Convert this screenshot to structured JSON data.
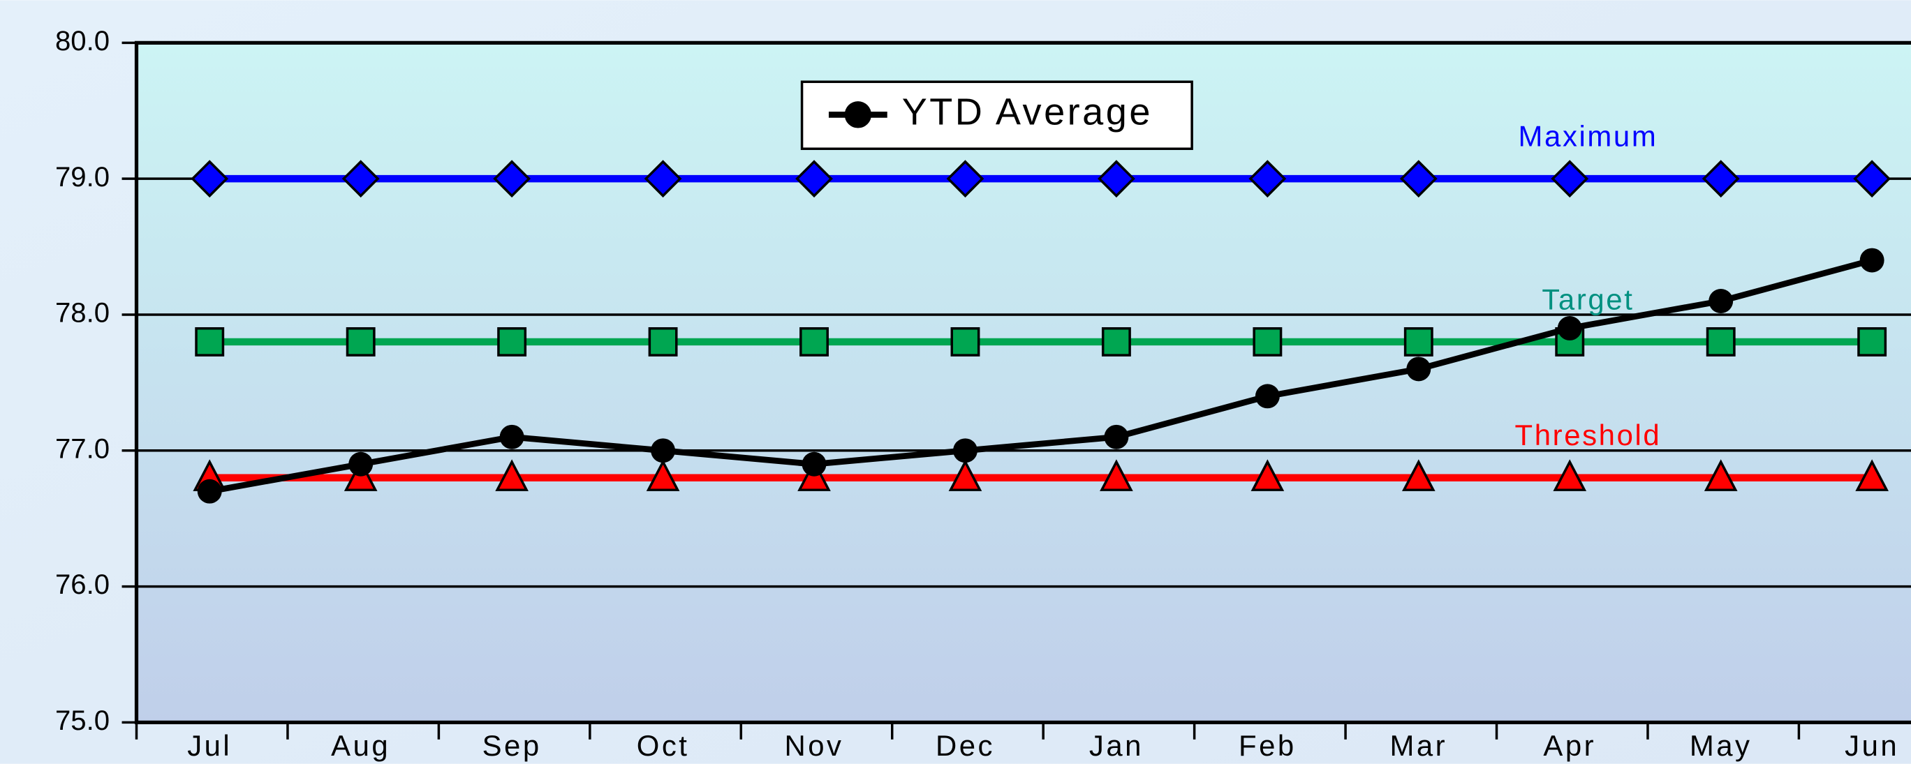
{
  "chart_data": {
    "type": "line",
    "categories": [
      "Jul",
      "Aug",
      "Sep",
      "Oct",
      "Nov",
      "Dec",
      "Jan",
      "Feb",
      "Mar",
      "Apr",
      "May",
      "Jun"
    ],
    "series": [
      {
        "name": "Maximum",
        "color": "#0000ff",
        "marker": "diamond",
        "legend": false,
        "label": true,
        "values": [
          79.0,
          79.0,
          79.0,
          79.0,
          79.0,
          79.0,
          79.0,
          79.0,
          79.0,
          79.0,
          79.0,
          79.0
        ]
      },
      {
        "name": "Target",
        "color": "#00a651",
        "label_color": "#009080",
        "marker": "square",
        "legend": false,
        "label": true,
        "values": [
          77.8,
          77.8,
          77.8,
          77.8,
          77.8,
          77.8,
          77.8,
          77.8,
          77.8,
          77.8,
          77.8,
          77.8
        ]
      },
      {
        "name": "Threshold",
        "color": "#ff0000",
        "marker": "triangle",
        "legend": false,
        "label": true,
        "values": [
          76.8,
          76.8,
          76.8,
          76.8,
          76.8,
          76.8,
          76.8,
          76.8,
          76.8,
          76.8,
          76.8,
          76.8
        ]
      },
      {
        "name": "YTD Average",
        "color": "#000000",
        "marker": "circle",
        "legend": true,
        "label": false,
        "values": [
          76.7,
          76.9,
          77.1,
          77.0,
          76.9,
          77.0,
          77.1,
          77.4,
          77.6,
          77.9,
          78.1,
          78.4
        ]
      }
    ],
    "ylim": [
      75,
      80
    ],
    "yticks": [
      {
        "value": 75,
        "label": "75.0"
      },
      {
        "value": 76,
        "label": "76.0"
      },
      {
        "value": 77,
        "label": "77.0"
      },
      {
        "value": 78,
        "label": "78.0"
      },
      {
        "value": 79,
        "label": "79.0"
      },
      {
        "value": 80,
        "label": "80.0"
      }
    ],
    "grid": true
  }
}
